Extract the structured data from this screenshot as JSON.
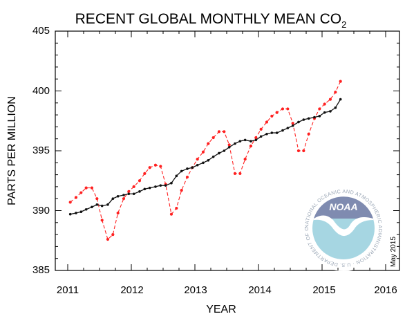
{
  "chart_data": {
    "type": "line",
    "title_main": "RECENT GLOBAL MONTHLY MEAN CO",
    "title_sub": "2",
    "xlabel": "YEAR",
    "ylabel": "PARTS PER MILLION",
    "xlim": [
      2011,
      2016
    ],
    "ylim": [
      385,
      405
    ],
    "x_ticks": [
      "2011",
      "2012",
      "2013",
      "2014",
      "2015",
      "2016"
    ],
    "y_ticks": [
      "385",
      "390",
      "395",
      "400",
      "405"
    ],
    "stamp": "May 2015",
    "colors": {
      "monthly": "#ff2020",
      "trend": "#111111"
    },
    "series": [
      {
        "style": "dashed-red-dots",
        "x": [
          2011.04,
          2011.13,
          2011.21,
          2011.29,
          2011.38,
          2011.46,
          2011.54,
          2011.63,
          2011.71,
          2011.79,
          2011.88,
          2011.96,
          2012.04,
          2012.13,
          2012.21,
          2012.29,
          2012.38,
          2012.46,
          2012.54,
          2012.63,
          2012.71,
          2012.79,
          2012.88,
          2012.96,
          2013.04,
          2013.13,
          2013.21,
          2013.29,
          2013.38,
          2013.46,
          2013.54,
          2013.63,
          2013.71,
          2013.79,
          2013.88,
          2013.96,
          2014.04,
          2014.13,
          2014.21,
          2014.29,
          2014.38,
          2014.46,
          2014.54,
          2014.63,
          2014.71,
          2014.79,
          2014.88,
          2014.96,
          2015.04,
          2015.13,
          2015.21,
          2015.29
        ],
        "values": [
          390.7,
          391.1,
          391.5,
          391.9,
          391.9,
          391.0,
          389.2,
          387.6,
          388.0,
          389.8,
          391.0,
          391.6,
          392.0,
          392.5,
          393.1,
          393.6,
          393.8,
          393.7,
          392.2,
          389.7,
          390.2,
          391.7,
          392.8,
          393.6,
          394.3,
          394.9,
          395.6,
          396.1,
          396.6,
          396.6,
          395.5,
          393.1,
          393.1,
          394.3,
          395.4,
          396.1,
          396.8,
          397.4,
          397.9,
          398.2,
          398.5,
          398.5,
          397.3,
          395.0,
          395.0,
          396.4,
          397.7,
          398.5,
          398.9,
          399.3,
          399.9,
          400.8
        ]
      },
      {
        "style": "solid-black-dots",
        "x": [
          2011.04,
          2011.13,
          2011.21,
          2011.29,
          2011.38,
          2011.46,
          2011.54,
          2011.63,
          2011.71,
          2011.79,
          2011.88,
          2011.96,
          2012.04,
          2012.13,
          2012.21,
          2012.29,
          2012.38,
          2012.46,
          2012.54,
          2012.63,
          2012.71,
          2012.79,
          2012.88,
          2012.96,
          2013.04,
          2013.13,
          2013.21,
          2013.29,
          2013.38,
          2013.46,
          2013.54,
          2013.63,
          2013.71,
          2013.79,
          2013.88,
          2013.96,
          2014.04,
          2014.13,
          2014.21,
          2014.29,
          2014.38,
          2014.46,
          2014.54,
          2014.63,
          2014.71,
          2014.79,
          2014.88,
          2014.96,
          2015.04,
          2015.13,
          2015.21,
          2015.29
        ],
        "values": [
          389.7,
          389.8,
          389.9,
          390.1,
          390.3,
          390.5,
          390.4,
          390.5,
          391.0,
          391.2,
          391.3,
          391.4,
          391.4,
          391.6,
          391.8,
          391.9,
          392.0,
          392.1,
          392.1,
          392.3,
          392.9,
          393.3,
          393.5,
          393.6,
          393.8,
          394.0,
          394.2,
          394.5,
          394.8,
          395.0,
          395.3,
          395.6,
          395.8,
          395.9,
          395.8,
          395.9,
          396.2,
          396.4,
          396.5,
          396.5,
          396.7,
          396.9,
          397.1,
          397.4,
          397.6,
          397.7,
          397.8,
          397.9,
          398.2,
          398.3,
          398.6,
          399.3
        ]
      }
    ]
  },
  "logo": {
    "text": "NOAA",
    "ring_text": "NATIONAL OCEANIC AND ATMOSPHERIC ADMINISTRATION · U.S. DEPARTMENT OF COMMERCE"
  }
}
